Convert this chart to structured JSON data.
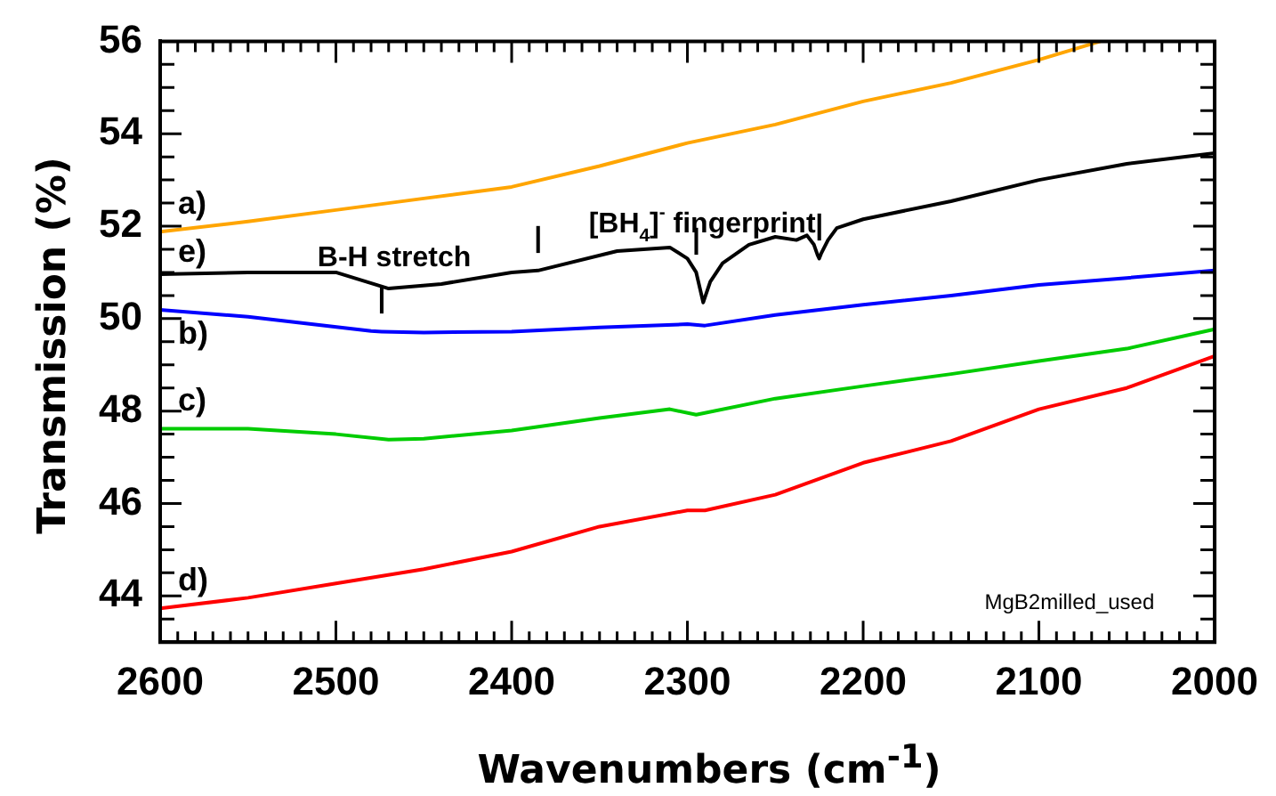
{
  "chart_data": {
    "type": "line",
    "xlabel": "Wavenumbers   (cm$^{-1}$)",
    "ylabel": "Transmission   (%)",
    "xlim": [
      2600,
      2000
    ],
    "xticks": [
      2600,
      {
        "value": 2590,
        "label": null
      },
      {
        "value": 2580,
        "label": null
      },
      {
        "value": 2570,
        "label": null
      },
      {
        "value": 2560,
        "label": null
      },
      {
        "value": 2550,
        "label": null
      },
      {
        "value": 2540,
        "label": null
      },
      {
        "value": 2530,
        "label": null
      },
      {
        "value": 2520,
        "label": null
      },
      {
        "value": 2510,
        "label": null
      },
      2500,
      {
        "value": 2490,
        "label": null
      },
      {
        "value": 2480,
        "label": null
      },
      {
        "value": 2470,
        "label": null
      },
      {
        "value": 2460,
        "label": null
      },
      {
        "value": 2450,
        "label": null
      },
      {
        "value": 2440,
        "label": null
      },
      {
        "value": 2430,
        "label": null
      },
      {
        "value": 2420,
        "label": null
      },
      {
        "value": 2410,
        "label": null
      },
      2400,
      {
        "value": 2390,
        "label": null
      },
      {
        "value": 2380,
        "label": null
      },
      {
        "value": 2370,
        "label": null
      },
      {
        "value": 2360,
        "label": null
      },
      {
        "value": 2350,
        "label": null
      },
      {
        "value": 2340,
        "label": null
      },
      {
        "value": 2330,
        "label": null
      },
      {
        "value": 2320,
        "label": null
      },
      {
        "value": 2310,
        "label": null
      },
      2300,
      {
        "value": 2290,
        "label": null
      },
      {
        "value": 2280,
        "label": null
      },
      {
        "value": 2270,
        "label": null
      },
      {
        "value": 2260,
        "label": null
      },
      {
        "value": 2250,
        "label": null
      },
      {
        "value": 2240,
        "label": null
      },
      {
        "value": 2230,
        "label": null
      },
      {
        "value": 2220,
        "label": null
      },
      {
        "value": 2210,
        "label": null
      },
      2200,
      {
        "value": 2190,
        "label": null
      },
      {
        "value": 2180,
        "label": null
      },
      {
        "value": 2170,
        "label": null
      },
      {
        "value": 2160,
        "label": null
      },
      {
        "value": 2150,
        "label": null
      },
      {
        "value": 2140,
        "label": null
      },
      {
        "value": 2130,
        "label": null
      },
      {
        "value": 2120,
        "label": null
      },
      {
        "value": 2110,
        "label": null
      },
      2100,
      {
        "value": 2090,
        "label": null
      },
      {
        "value": 2080,
        "label": null
      },
      {
        "value": 2070,
        "label": null
      },
      {
        "value": 2060,
        "label": null
      },
      {
        "value": 2050,
        "label": null
      },
      {
        "value": 2040,
        "label": null
      },
      {
        "value": 2030,
        "label": null
      },
      {
        "value": 2020,
        "label": null
      },
      {
        "value": 2010,
        "label": null
      },
      2000
    ],
    "ylim": [
      43,
      56
    ],
    "yticks": [
      {
        "value": 43.5,
        "label": null
      },
      44,
      {
        "value": 44.5,
        "label": null
      },
      {
        "value": 45,
        "label": null
      },
      {
        "value": 45.5,
        "label": null
      },
      46,
      {
        "value": 46.5,
        "label": null
      },
      {
        "value": 47,
        "label": null
      },
      {
        "value": 47.5,
        "label": null
      },
      48,
      {
        "value": 48.5,
        "label": null
      },
      {
        "value": 49,
        "label": null
      },
      {
        "value": 49.5,
        "label": null
      },
      50,
      {
        "value": 50.5,
        "label": null
      },
      {
        "value": 51,
        "label": null
      },
      {
        "value": 51.5,
        "label": null
      },
      52,
      {
        "value": 52.5,
        "label": null
      },
      {
        "value": 53,
        "label": null
      },
      {
        "value": 53.5,
        "label": null
      },
      54,
      {
        "value": 54.5,
        "label": null
      },
      {
        "value": 55,
        "label": null
      },
      {
        "value": 55.5,
        "label": null
      },
      56
    ],
    "legend": false,
    "marker": "none",
    "line_style": "solid",
    "series": [
      {
        "name": "a)",
        "color": "#ffa500",
        "x": [
          2600,
          2550,
          2500,
          2450,
          2400,
          2350,
          2300,
          2250,
          2200,
          2150,
          2100,
          2065
        ],
        "values": [
          51.88,
          52.1,
          52.35,
          52.6,
          52.85,
          53.3,
          53.8,
          54.2,
          54.7,
          55.1,
          55.6,
          56
        ]
      },
      {
        "name": "e)",
        "color": "#000000",
        "x": [
          2600,
          2550,
          2500,
          2470,
          2440,
          2400,
          2385,
          2340,
          2310,
          2300,
          2295,
          2291,
          2287,
          2280,
          2265,
          2250,
          2238,
          2232,
          2228,
          2226,
          2225,
          2224,
          2220,
          2215,
          2200,
          2150,
          2100,
          2050,
          2000
        ],
        "values": [
          50.96,
          51.0,
          51.0,
          50.65,
          50.75,
          51.0,
          51.04,
          51.46,
          51.54,
          51.3,
          51.0,
          50.35,
          50.8,
          51.2,
          51.6,
          51.77,
          51.7,
          51.8,
          51.6,
          51.38,
          51.3,
          51.4,
          51.7,
          51.96,
          52.15,
          52.54,
          53.0,
          53.35,
          53.58
        ]
      },
      {
        "name": "b)",
        "color": "#0000ff",
        "x": [
          2600,
          2550,
          2480,
          2474,
          2450,
          2400,
          2350,
          2300,
          2290,
          2250,
          2200,
          2150,
          2100,
          2050,
          2000
        ],
        "values": [
          50.19,
          50.04,
          49.73,
          49.72,
          49.7,
          49.72,
          49.81,
          49.88,
          49.85,
          50.08,
          50.3,
          50.5,
          50.73,
          50.88,
          51.04
        ]
      },
      {
        "name": "c)",
        "color": "#00cc00",
        "x": [
          2600,
          2550,
          2500,
          2470,
          2450,
          2400,
          2350,
          2310,
          2295,
          2250,
          2200,
          2150,
          2100,
          2050,
          2000
        ],
        "values": [
          47.62,
          47.62,
          47.5,
          47.38,
          47.4,
          47.58,
          47.85,
          48.04,
          47.92,
          48.27,
          48.54,
          48.8,
          49.08,
          49.35,
          49.77
        ]
      },
      {
        "name": "d)",
        "color": "#ff0000",
        "x": [
          2600,
          2550,
          2500,
          2450,
          2400,
          2350,
          2300,
          2290,
          2250,
          2200,
          2150,
          2100,
          2050,
          2000
        ],
        "values": [
          43.73,
          43.96,
          44.27,
          44.58,
          44.96,
          45.5,
          45.85,
          45.85,
          46.19,
          46.88,
          47.35,
          48.04,
          48.5,
          49.19
        ]
      }
    ],
    "annotations": [
      "B-H stretch",
      "[BH$_{4}$]$^{-}$ fingerprint",
      {
        "text": "|",
        "x": 2474,
        "y": 49.72
      },
      {
        "text": "|",
        "x": 2385,
        "y": 51.04
      },
      {
        "text": "|",
        "x": 2295,
        "y": 51.0
      },
      {
        "text": "|",
        "x": 2225,
        "y": 51.3
      },
      "MgB2milled_used"
    ]
  }
}
